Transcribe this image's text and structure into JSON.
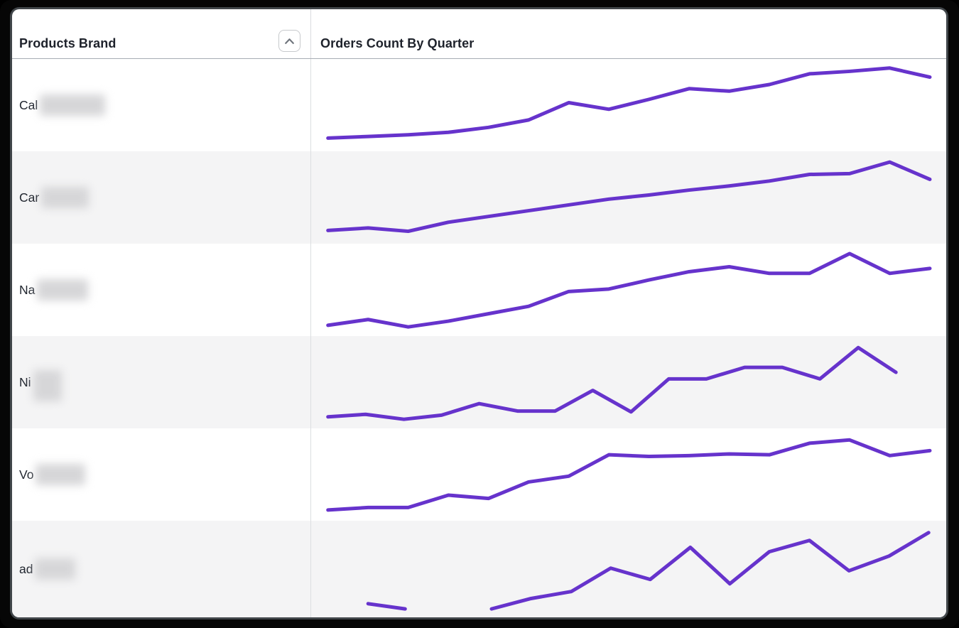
{
  "window": {
    "frame_color": "#060606",
    "frame_edge_color": "#41464a",
    "content_bg": "#ffffff"
  },
  "header": {
    "col1": "Products Brand",
    "col2": "Orders Count By Quarter",
    "sort_icon": "chevron-up-icon"
  },
  "colors": {
    "line": "#6633cc",
    "row_stripe": "#f4f4f5",
    "row_white": "#ffffff",
    "column_divider": "#dcdee1",
    "header_border": "#a7acb4",
    "text": "#21262f",
    "button_border": "#c7c9cc",
    "icon": "#70757d",
    "redaction": "#d6d6d8"
  },
  "rows": [
    {
      "brand": "Cal",
      "redacted": true,
      "blur_w": 92,
      "blur_h": 30,
      "blur_dy": 0,
      "bg": "#ffffff"
    },
    {
      "brand": "Car",
      "redacted": true,
      "blur_w": 67,
      "blur_h": 30,
      "blur_dy": 0,
      "bg": "#f4f4f5"
    },
    {
      "brand": "Na",
      "redacted": true,
      "blur_w": 72,
      "blur_h": 30,
      "blur_dy": 0,
      "bg": "#ffffff"
    },
    {
      "brand": "Ni",
      "redacted": true,
      "blur_w": 40,
      "blur_h": 44,
      "blur_dy": 5,
      "bg": "#f4f4f5"
    },
    {
      "brand": "Vo",
      "redacted": true,
      "blur_w": 70,
      "blur_h": 30,
      "blur_dy": 0,
      "bg": "#ffffff"
    },
    {
      "brand": "ad",
      "redacted": true,
      "blur_w": 57,
      "blur_h": 30,
      "blur_dy": 0,
      "bg": "#f4f4f5"
    }
  ],
  "chart_data": [
    {
      "row": "Cal (redacted)",
      "type": "line",
      "xlabel": "quarters (unlabeled sparkline)",
      "ylabel": "orders count (relative 0-100, no axis shown)",
      "segments": [
        [
          [
            1,
            10
          ],
          [
            7.5,
            12
          ],
          [
            14,
            14
          ],
          [
            20.5,
            17
          ],
          [
            27,
            23
          ],
          [
            33.5,
            32
          ],
          [
            40,
            53
          ],
          [
            46.5,
            45
          ],
          [
            53,
            57
          ],
          [
            59.5,
            70
          ],
          [
            66,
            67
          ],
          [
            72.5,
            75
          ],
          [
            79,
            88
          ],
          [
            85.5,
            91
          ],
          [
            92,
            95
          ],
          [
            98.5,
            84
          ]
        ]
      ]
    },
    {
      "row": "Car (redacted)",
      "type": "line",
      "xlabel": "quarters (unlabeled sparkline)",
      "ylabel": "orders count (relative 0-100, no axis shown)",
      "segments": [
        [
          [
            1,
            10
          ],
          [
            7.5,
            13
          ],
          [
            14,
            9
          ],
          [
            20.5,
            20
          ],
          [
            27,
            27
          ],
          [
            33.5,
            34
          ],
          [
            40,
            41
          ],
          [
            46.5,
            48
          ],
          [
            53,
            53
          ],
          [
            59.5,
            59
          ],
          [
            66,
            64
          ],
          [
            72.5,
            70
          ],
          [
            79,
            78
          ],
          [
            85.5,
            79
          ],
          [
            92,
            93
          ],
          [
            98.5,
            72
          ]
        ]
      ]
    },
    {
      "row": "Na (redacted)",
      "type": "line",
      "xlabel": "quarters (unlabeled sparkline)",
      "ylabel": "orders count (relative 0-100, no axis shown)",
      "segments": [
        [
          [
            1,
            7
          ],
          [
            7.5,
            14
          ],
          [
            14,
            5
          ],
          [
            20.5,
            12
          ],
          [
            27,
            21
          ],
          [
            33.5,
            30
          ],
          [
            40,
            48
          ],
          [
            46.5,
            51
          ],
          [
            53,
            62
          ],
          [
            59.5,
            72
          ],
          [
            66,
            78
          ],
          [
            72.5,
            70
          ],
          [
            79,
            70
          ],
          [
            85.5,
            94
          ],
          [
            92,
            70
          ],
          [
            98.5,
            76
          ]
        ]
      ]
    },
    {
      "row": "Ni (redacted)",
      "type": "line",
      "xlabel": "quarters (unlabeled sparkline, series ends early)",
      "ylabel": "orders count (relative 0-100, no axis shown)",
      "segments": [
        [
          [
            1,
            8
          ],
          [
            7.1,
            11
          ],
          [
            13.3,
            5
          ],
          [
            19.4,
            10
          ],
          [
            25.5,
            24
          ],
          [
            31.7,
            15
          ],
          [
            37.8,
            15
          ],
          [
            43.9,
            40
          ],
          [
            50.1,
            14
          ],
          [
            56.2,
            54
          ],
          [
            62.3,
            54
          ],
          [
            68.5,
            68
          ],
          [
            74.6,
            68
          ],
          [
            80.7,
            54
          ],
          [
            86.9,
            92
          ],
          [
            93,
            62
          ]
        ]
      ]
    },
    {
      "row": "Vo (redacted)",
      "type": "line",
      "xlabel": "quarters (unlabeled sparkline)",
      "ylabel": "orders count (relative 0-100, no axis shown)",
      "segments": [
        [
          [
            1,
            7
          ],
          [
            7.5,
            10
          ],
          [
            14,
            10
          ],
          [
            20.5,
            25
          ],
          [
            27,
            21
          ],
          [
            33.5,
            41
          ],
          [
            40,
            48
          ],
          [
            46.5,
            74
          ],
          [
            53,
            72
          ],
          [
            59.5,
            73
          ],
          [
            66,
            75
          ],
          [
            72.5,
            74
          ],
          [
            79,
            88
          ],
          [
            85.5,
            92
          ],
          [
            92,
            73
          ],
          [
            98.5,
            79
          ]
        ]
      ]
    },
    {
      "row": "ad (redacted)",
      "type": "line",
      "xlabel": "quarters (unlabeled sparkline, gap in data)",
      "ylabel": "orders count (relative 0-100, no axis shown)",
      "segments": [
        [
          [
            7.5,
            10
          ],
          [
            13.5,
            4
          ]
        ],
        [
          [
            27.5,
            4
          ],
          [
            33.9,
            16
          ],
          [
            40.4,
            24
          ],
          [
            46.8,
            51
          ],
          [
            53.2,
            38
          ],
          [
            59.7,
            75
          ],
          [
            66.1,
            33
          ],
          [
            72.5,
            70
          ],
          [
            79,
            83
          ],
          [
            85.4,
            48
          ],
          [
            91.9,
            65
          ],
          [
            98.3,
            92
          ]
        ]
      ]
    }
  ]
}
